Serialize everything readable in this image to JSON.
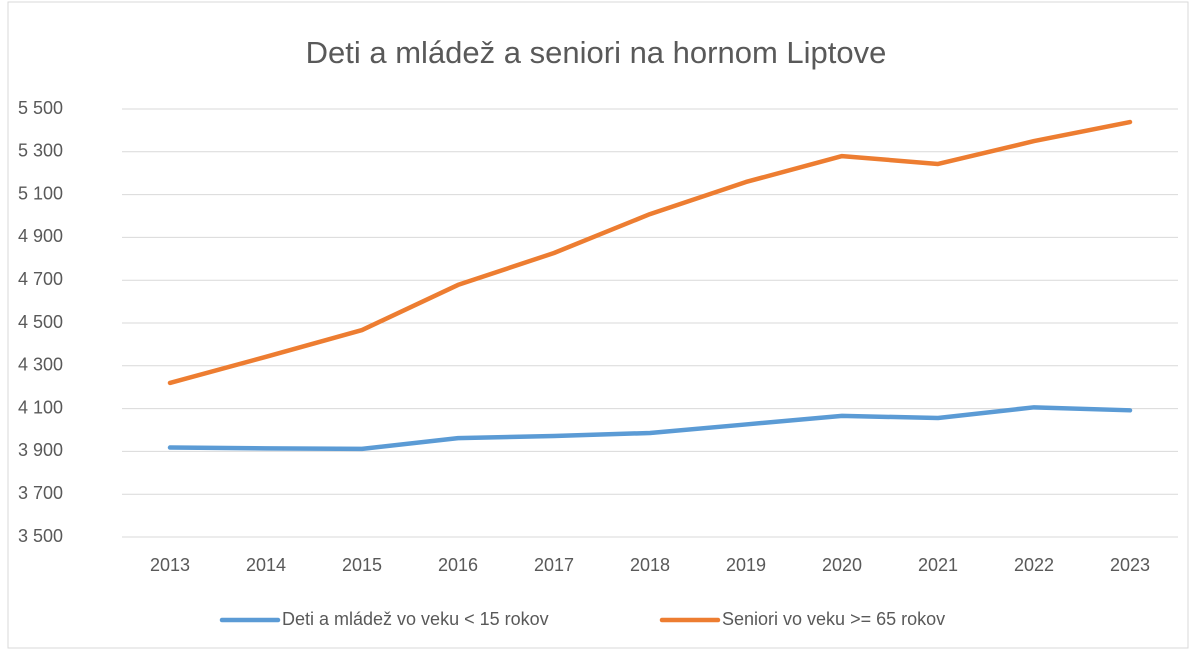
{
  "chart_data": {
    "type": "line",
    "title": "Deti a mládež a seniori na hornom Liptove",
    "categories": [
      "2013",
      "2014",
      "2015",
      "2016",
      "2017",
      "2018",
      "2019",
      "2020",
      "2021",
      "2022",
      "2023"
    ],
    "series": [
      {
        "name": "Deti a mládež vo veku < 15 rokov",
        "color": "#5b9bd5",
        "values": [
          3918,
          3914,
          3912,
          3962,
          3972,
          3986,
          4026,
          4066,
          4056,
          4106,
          4092
        ]
      },
      {
        "name": "Seniori vo veku >= 65 rokov",
        "color": "#ed7d31",
        "values": [
          4220,
          4342,
          4467,
          4678,
          4827,
          5009,
          5159,
          5280,
          5243,
          5350,
          5439
        ]
      }
    ],
    "ylim": [
      3500,
      5500
    ],
    "yticks": [
      {
        "value": 3500,
        "label": "3 500"
      },
      {
        "value": 3700,
        "label": "3 700"
      },
      {
        "value": 3900,
        "label": "3 900"
      },
      {
        "value": 4100,
        "label": "4 100"
      },
      {
        "value": 4300,
        "label": "4 300"
      },
      {
        "value": 4500,
        "label": "4 500"
      },
      {
        "value": 4700,
        "label": "4 700"
      },
      {
        "value": 4900,
        "label": "4 900"
      },
      {
        "value": 5100,
        "label": "5 100"
      },
      {
        "value": 5300,
        "label": "5 300"
      },
      {
        "value": 5500,
        "label": "5 500"
      }
    ],
    "grid": true,
    "legend": "bottom"
  }
}
